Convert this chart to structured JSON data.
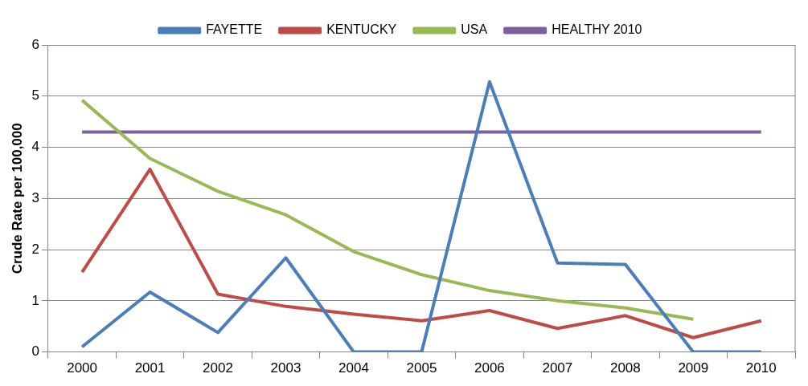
{
  "chart_data": {
    "type": "line",
    "ylabel": "Crude Rate per 100,000",
    "categories": [
      "2000",
      "2001",
      "2002",
      "2003",
      "2004",
      "2005",
      "2006",
      "2007",
      "2008",
      "2009",
      "2010"
    ],
    "series": [
      {
        "name": "FAYETTE",
        "color": "#4a7ebb",
        "values": [
          0.1,
          1.17,
          0.38,
          1.84,
          0,
          0,
          5.28,
          1.74,
          1.71,
          0,
          0
        ]
      },
      {
        "name": "KENTUCKY",
        "color": "#be4b48",
        "values": [
          1.56,
          3.57,
          1.13,
          0.89,
          0.74,
          0.61,
          0.81,
          0.46,
          0.71,
          0.28,
          0.61
        ]
      },
      {
        "name": "USA",
        "color": "#98b954",
        "values": [
          4.92,
          3.78,
          3.14,
          2.68,
          1.96,
          1.51,
          1.2,
          1.0,
          0.86,
          0.64,
          null
        ]
      },
      {
        "name": "HEALTHY 2010",
        "color": "#7d60a0",
        "values": [
          4.3,
          4.3,
          4.3,
          4.3,
          4.3,
          4.3,
          4.3,
          4.3,
          4.3,
          4.3,
          4.3
        ]
      }
    ],
    "ylim": [
      0,
      6
    ],
    "yticks": [
      0,
      1,
      2,
      3,
      4,
      5,
      6
    ],
    "grid": "y",
    "legend": "top",
    "marker": "none",
    "line_style": "solid"
  }
}
